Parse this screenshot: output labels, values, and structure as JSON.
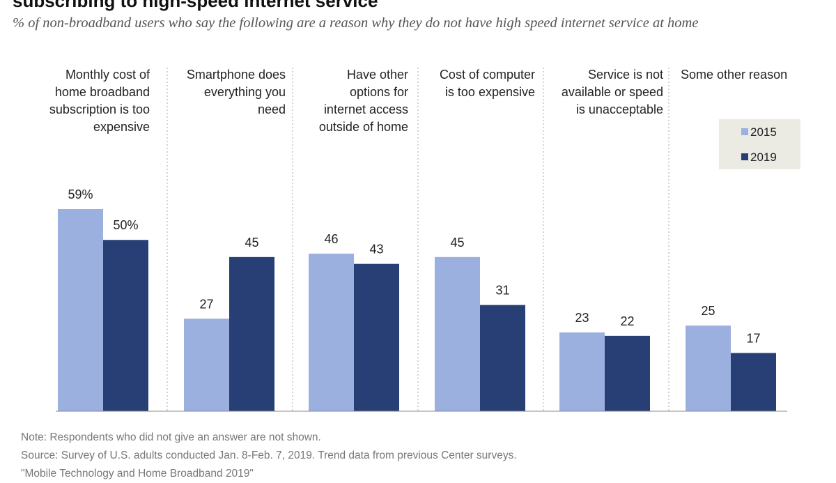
{
  "chart_data": {
    "type": "bar",
    "title": "subscribing to high-speed internet service",
    "subtitle": "% of non-broadband users who say the following are a reason why they do not have high speed internet service at home",
    "categories": [
      [
        "Monthly cost of",
        "home broadband",
        "subscription is too",
        "expensive"
      ],
      [
        "Smartphone does",
        "everything you",
        "need"
      ],
      [
        "Have other",
        "options for",
        "internet access",
        "outside of home"
      ],
      [
        "Cost of computer",
        "is too expensive"
      ],
      [
        "Service is not",
        "available or speed",
        "is unacceptable"
      ],
      [
        "Some other reason"
      ]
    ],
    "series": [
      {
        "name": "2015",
        "color": "#9cb0e0",
        "values": [
          59,
          27,
          46,
          45,
          23,
          25
        ],
        "labels": [
          "59%",
          "27",
          "46",
          "45",
          "23",
          "25"
        ]
      },
      {
        "name": "2019",
        "color": "#273f74",
        "values": [
          50,
          45,
          43,
          31,
          22,
          17
        ],
        "labels": [
          "50%",
          "45",
          "43",
          "31",
          "22",
          "17"
        ]
      }
    ],
    "ylim": [
      0,
      59
    ],
    "legend_position": "right"
  },
  "notes": {
    "note": "Note: Respondents who did not give an answer are not shown.",
    "source": "Source: Survey of U.S. adults conducted Jan. 8-Feb. 7, 2019. Trend data from previous Center surveys.",
    "report": "\"Mobile Technology and Home Broadband 2019\""
  },
  "colors": {
    "background": "#ffffff",
    "legend_background": "#ebebe4",
    "divider": "#aaaaaa",
    "baseline": "#888888"
  }
}
